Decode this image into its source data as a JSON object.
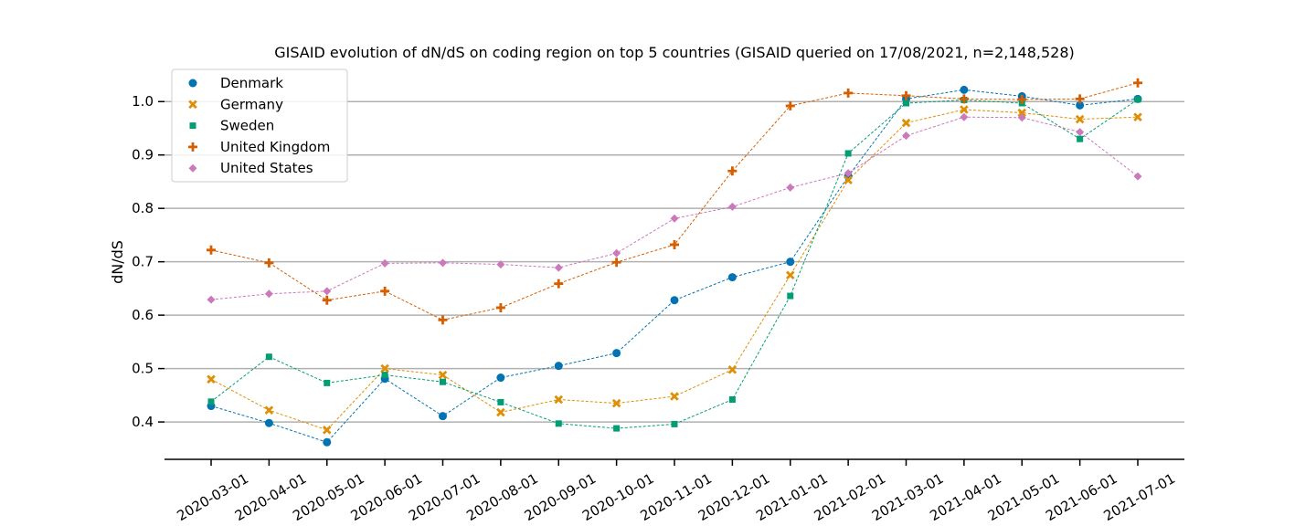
{
  "chart_data": {
    "type": "line",
    "title": "GISAID evolution of dN/dS on coding region on top 5 countries (GISAID queried on 17/08/2021, n=2,148,528)",
    "xlabel": "",
    "ylabel": "dN/dS",
    "ylim": [
      0.33,
      1.05
    ],
    "yticks": [
      0.4,
      0.5,
      0.6,
      0.7,
      0.8,
      0.9,
      1.0
    ],
    "ytick_labels": [
      "0.4",
      "0.5",
      "0.6",
      "0.7",
      "0.8",
      "0.9",
      "1.0"
    ],
    "grid": "horizontal",
    "legend_position": "top-left",
    "categories": [
      "2020-03-01",
      "2020-04-01",
      "2020-05-01",
      "2020-06-01",
      "2020-07-01",
      "2020-08-01",
      "2020-09-01",
      "2020-10-01",
      "2020-11-01",
      "2020-12-01",
      "2021-01-01",
      "2021-02-01",
      "2021-03-01",
      "2021-04-01",
      "2021-05-01",
      "2021-06-01",
      "2021-07-01"
    ],
    "series": [
      {
        "name": "Denmark",
        "color": "#0173b2",
        "marker": "circle",
        "values": [
          0.43,
          0.398,
          0.362,
          0.481,
          0.411,
          0.483,
          0.505,
          0.529,
          0.628,
          0.671,
          0.7,
          0.86,
          1.005,
          1.022,
          1.01,
          0.993,
          1.005
        ]
      },
      {
        "name": "Germany",
        "color": "#de8f05",
        "marker": "x",
        "values": [
          0.48,
          0.422,
          0.385,
          0.5,
          0.488,
          0.418,
          0.442,
          0.435,
          0.448,
          0.498,
          0.675,
          0.853,
          0.96,
          0.985,
          0.979,
          0.967,
          0.971
        ]
      },
      {
        "name": "Sweden",
        "color": "#029e73",
        "marker": "square",
        "values": [
          0.438,
          0.522,
          0.473,
          0.488,
          0.475,
          0.437,
          0.397,
          0.388,
          0.396,
          0.442,
          0.636,
          0.903,
          0.997,
          1.003,
          0.997,
          0.93,
          1.004
        ]
      },
      {
        "name": "United Kingdom",
        "color": "#d55e00",
        "marker": "plus",
        "values": [
          0.722,
          0.698,
          0.628,
          0.645,
          0.591,
          0.614,
          0.659,
          0.699,
          0.732,
          0.87,
          0.992,
          1.016,
          1.011,
          1.005,
          1.004,
          1.005,
          1.035
        ]
      },
      {
        "name": "United States",
        "color": "#cc78bc",
        "marker": "diamond",
        "values": [
          0.629,
          0.64,
          0.645,
          0.697,
          0.698,
          0.695,
          0.689,
          0.716,
          0.781,
          0.803,
          0.839,
          0.866,
          0.936,
          0.971,
          0.97,
          0.943,
          0.86
        ]
      }
    ]
  }
}
